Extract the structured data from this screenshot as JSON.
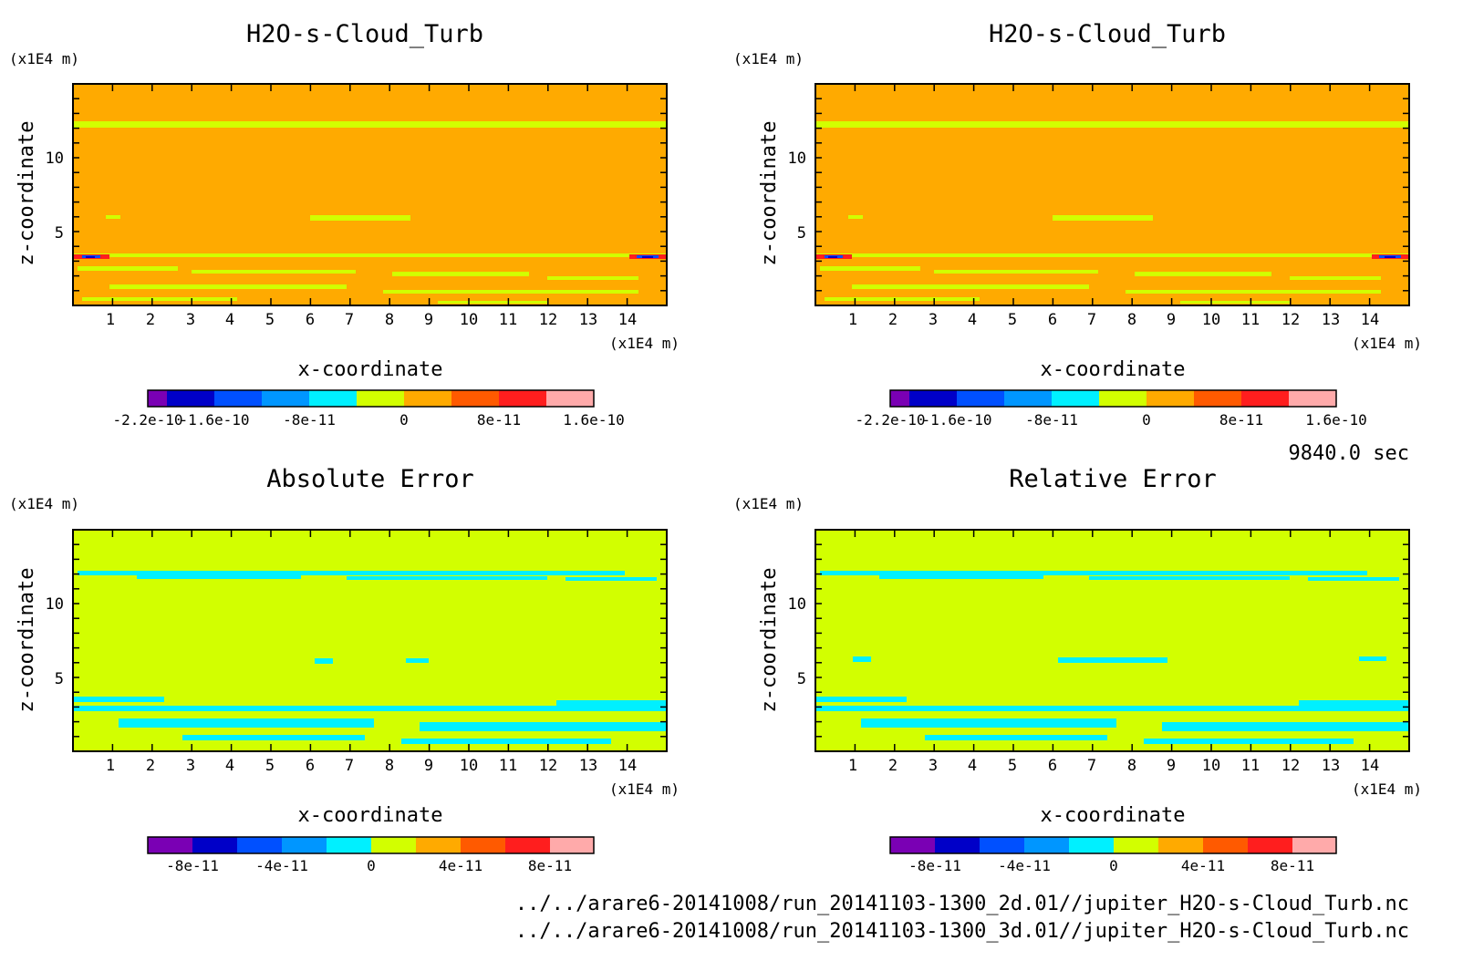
{
  "colors": {
    "purple": "#7a00b4",
    "navy": "#0000c8",
    "blue": "#0050ff",
    "azure": "#0096ff",
    "cyan": "#00f0ff",
    "lime": "#d2ff00",
    "orange": "#ffaa00",
    "darkorange": "#ff5a00",
    "red": "#ff1e1e",
    "pink": "#ffaaaa"
  },
  "footer": {
    "time": "9840.0 sec",
    "file1": "../../arare6-20141008/run_20141103-1300_2d.01//jupiter_H2O-s-Cloud_Turb.nc",
    "file2": "../../arare6-20141008/run_20141103-1300_3d.01//jupiter_H2O-s-Cloud_Turb.nc"
  },
  "chart_data": [
    {
      "type": "heatmap",
      "title": "H2O-s-Cloud_Turb",
      "xlabel": "x-coordinate",
      "ylabel": "z-coordinate",
      "x_unit": "(x1E4 m)",
      "y_unit": "(x1E4 m)",
      "xlim": [
        0,
        15
      ],
      "ylim": [
        0,
        15
      ],
      "x_ticks": [
        "1",
        "2",
        "3",
        "4",
        "5",
        "6",
        "7",
        "8",
        "9",
        "10",
        "11",
        "12",
        "13",
        "14"
      ],
      "y_ticks": [
        "5",
        "10"
      ],
      "background_level": "orange",
      "colorbar_labels": [
        "-2.2e-10",
        "-1.6e-10",
        "-8e-11",
        "0",
        "8e-11",
        "1.6e-10"
      ],
      "features": "band near z=12 and noisy patches below z=3, concentrated extremes at z~3"
    },
    {
      "type": "heatmap",
      "title": "H2O-s-Cloud_Turb",
      "xlabel": "x-coordinate",
      "ylabel": "z-coordinate",
      "x_unit": "(x1E4 m)",
      "y_unit": "(x1E4 m)",
      "xlim": [
        0,
        15
      ],
      "ylim": [
        0,
        15
      ],
      "x_ticks": [
        "1",
        "2",
        "3",
        "4",
        "5",
        "6",
        "7",
        "8",
        "9",
        "10",
        "11",
        "12",
        "13",
        "14"
      ],
      "y_ticks": [
        "5",
        "10"
      ],
      "background_level": "orange",
      "colorbar_labels": [
        "-2.2e-10",
        "-1.6e-10",
        "-8e-11",
        "0",
        "8e-11",
        "1.6e-10"
      ],
      "features": "same as left panel"
    },
    {
      "type": "heatmap",
      "title": "Absolute Error",
      "xlabel": "x-coordinate",
      "ylabel": "z-coordinate",
      "x_unit": "(x1E4 m)",
      "y_unit": "(x1E4 m)",
      "xlim": [
        0,
        15
      ],
      "ylim": [
        0,
        15
      ],
      "x_ticks": [
        "1",
        "2",
        "3",
        "4",
        "5",
        "6",
        "7",
        "8",
        "9",
        "10",
        "11",
        "12",
        "13",
        "14"
      ],
      "y_ticks": [
        "5",
        "10"
      ],
      "background_level": "lime",
      "colorbar_labels": [
        "-8e-11",
        "-4e-11",
        "0",
        "4e-11",
        "8e-11"
      ],
      "features": "cyan patches near z=12, z=6 and below z=3.5"
    },
    {
      "type": "heatmap",
      "title": "Relative Error",
      "xlabel": "x-coordinate",
      "ylabel": "z-coordinate",
      "x_unit": "(x1E4 m)",
      "y_unit": "(x1E4 m)",
      "xlim": [
        0,
        15
      ],
      "ylim": [
        0,
        15
      ],
      "x_ticks": [
        "1",
        "2",
        "3",
        "4",
        "5",
        "6",
        "7",
        "8",
        "9",
        "10",
        "11",
        "12",
        "13",
        "14"
      ],
      "y_ticks": [
        "5",
        "10"
      ],
      "background_level": "lime",
      "colorbar_labels": [
        "-8e-11",
        "-4e-11",
        "0",
        "4e-11",
        "8e-11"
      ],
      "features": "cyan patches near z=12, z=6 and below z=3.5"
    }
  ]
}
